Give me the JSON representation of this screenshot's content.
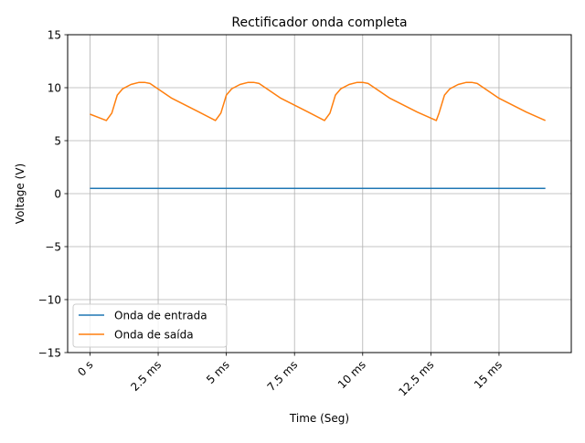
{
  "chart_data": {
    "type": "line",
    "title": "Rectificador onda completa",
    "xlabel": "Time (Seg)",
    "ylabel": "Voltage (V)",
    "xlim": [
      -0.00082,
      0.01765
    ],
    "ylim": [
      -15,
      15
    ],
    "x_unit": "s",
    "grid": true,
    "legend_position": "lower-left",
    "y_ticks": [
      {
        "value": 15,
        "label": "15"
      },
      {
        "value": 10,
        "label": "10"
      },
      {
        "value": 5,
        "label": "5"
      },
      {
        "value": 0,
        "label": "0"
      },
      {
        "value": -5,
        "label": "−5"
      },
      {
        "value": -10,
        "label": "−10"
      },
      {
        "value": -15,
        "label": "−15"
      }
    ],
    "x_ticks": [
      {
        "value": 0,
        "label": "0 s"
      },
      {
        "value": 0.0025,
        "label": "2.5 ms"
      },
      {
        "value": 0.005,
        "label": "5 ms"
      },
      {
        "value": 0.0075,
        "label": "7.5 ms"
      },
      {
        "value": 0.01,
        "label": "10 ms"
      },
      {
        "value": 0.0125,
        "label": "12.5 ms"
      },
      {
        "value": 0.015,
        "label": "15 ms"
      }
    ],
    "series": [
      {
        "name": "Onda de entrada",
        "color": "#1f77b4",
        "x": [
          0,
          0.0167
        ],
        "y": [
          0.5,
          0.5
        ]
      },
      {
        "name": "Onda de saída",
        "color": "#ff7f0e",
        "x": [
          0,
          0.0006,
          0.0008,
          0.001,
          0.0012,
          0.0015,
          0.0018,
          0.002,
          0.0022,
          0.003,
          0.004,
          0.0046,
          0.0048,
          0.005,
          0.0052,
          0.0055,
          0.0058,
          0.006,
          0.0062,
          0.007,
          0.008,
          0.0086,
          0.0088,
          0.009,
          0.0092,
          0.0095,
          0.0098,
          0.01,
          0.0102,
          0.011,
          0.012,
          0.0127,
          0.0128,
          0.013,
          0.0132,
          0.0135,
          0.0138,
          0.014,
          0.0142,
          0.015,
          0.016,
          0.0167
        ],
        "y": [
          7.5,
          6.9,
          7.6,
          9.3,
          9.9,
          10.3,
          10.5,
          10.5,
          10.4,
          9.0,
          7.7,
          6.9,
          7.6,
          9.3,
          9.9,
          10.3,
          10.5,
          10.5,
          10.4,
          9.0,
          7.7,
          6.9,
          7.6,
          9.3,
          9.9,
          10.3,
          10.5,
          10.5,
          10.4,
          9.0,
          7.7,
          6.9,
          7.6,
          9.3,
          9.9,
          10.3,
          10.5,
          10.5,
          10.4,
          9.0,
          7.7,
          6.9
        ]
      }
    ]
  }
}
